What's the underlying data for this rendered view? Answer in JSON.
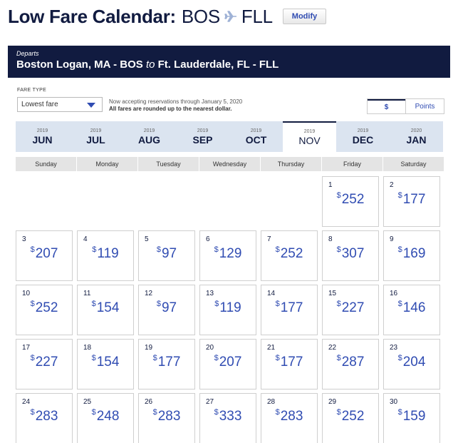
{
  "page": {
    "title": "Low Fare Calendar:",
    "origin": "BOS",
    "destination": "FLL",
    "modify_label": "Modify"
  },
  "banner": {
    "label": "Departs",
    "from": "Boston Logan, MA - BOS",
    "to_word": "to",
    "to": "Ft. Lauderdale, FL - FLL"
  },
  "fare_type": {
    "label": "FARE TYPE",
    "selected": "Lowest fare"
  },
  "notice": {
    "line1": "Now accepting reservations through January 5, 2020",
    "line2": "All fares are rounded up to the nearest dollar."
  },
  "currency_toggle": {
    "dollar_label": "$",
    "points_label": "Points",
    "selected": "$"
  },
  "months": [
    {
      "year": "2019",
      "name": "JUN"
    },
    {
      "year": "2019",
      "name": "JUL"
    },
    {
      "year": "2019",
      "name": "AUG"
    },
    {
      "year": "2019",
      "name": "SEP"
    },
    {
      "year": "2019",
      "name": "OCT"
    },
    {
      "year": "2019",
      "name": "NOV"
    },
    {
      "year": "2019",
      "name": "DEC"
    },
    {
      "year": "2020",
      "name": "JAN"
    }
  ],
  "active_month": "NOV",
  "weekdays": [
    "Sunday",
    "Monday",
    "Tuesday",
    "Wednesday",
    "Thursday",
    "Friday",
    "Saturday"
  ],
  "first_weekday_index": 5,
  "currency_symbol": "$",
  "days": [
    {
      "day": "1",
      "price": "252"
    },
    {
      "day": "2",
      "price": "177"
    },
    {
      "day": "3",
      "price": "207"
    },
    {
      "day": "4",
      "price": "119"
    },
    {
      "day": "5",
      "price": "97"
    },
    {
      "day": "6",
      "price": "129"
    },
    {
      "day": "7",
      "price": "252"
    },
    {
      "day": "8",
      "price": "307"
    },
    {
      "day": "9",
      "price": "169"
    },
    {
      "day": "10",
      "price": "252"
    },
    {
      "day": "11",
      "price": "154"
    },
    {
      "day": "12",
      "price": "97"
    },
    {
      "day": "13",
      "price": "119"
    },
    {
      "day": "14",
      "price": "177"
    },
    {
      "day": "15",
      "price": "227"
    },
    {
      "day": "16",
      "price": "146"
    },
    {
      "day": "17",
      "price": "227"
    },
    {
      "day": "18",
      "price": "154"
    },
    {
      "day": "19",
      "price": "177"
    },
    {
      "day": "20",
      "price": "207"
    },
    {
      "day": "21",
      "price": "177"
    },
    {
      "day": "22",
      "price": "287"
    },
    {
      "day": "23",
      "price": "204"
    },
    {
      "day": "24",
      "price": "283"
    },
    {
      "day": "25",
      "price": "248"
    },
    {
      "day": "26",
      "price": "283"
    },
    {
      "day": "27",
      "price": "333"
    },
    {
      "day": "28",
      "price": "283"
    },
    {
      "day": "29",
      "price": "252"
    },
    {
      "day": "30",
      "price": "159"
    }
  ],
  "colors": {
    "navy": "#111b40",
    "accent_blue": "#304cb2",
    "month_bar": "#dbe4f0"
  }
}
